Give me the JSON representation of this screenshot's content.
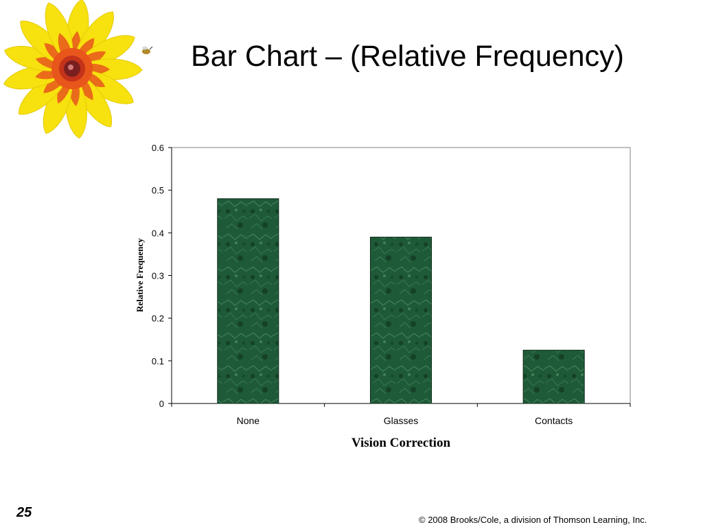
{
  "slide": {
    "title": "Bar Chart – (Relative Frequency)",
    "number": "25",
    "copyright": "© 2008 Brooks/Cole, a division of Thomson Learning, Inc."
  },
  "colors": {
    "bar_fill": "#1f5a38",
    "bar_dark": "#123d25",
    "bar_light": "#4f8f68",
    "petal_yellow": "#f7e10e",
    "petal_orange": "#e8561b",
    "flower_center": "#7a1f1f"
  },
  "decoration": {
    "flower_icon": "black-eyed-susan-flower"
  },
  "chart_data": {
    "type": "bar",
    "title": "",
    "categories": [
      "None",
      "Glasses",
      "Contacts"
    ],
    "values": [
      0.48,
      0.39,
      0.125
    ],
    "xlabel": "Vision Correction",
    "ylabel": "Relative Frequency",
    "ylim": [
      0,
      0.6
    ],
    "yticks": [
      "0",
      "0.1",
      "0.2",
      "0.3",
      "0.4",
      "0.5",
      "0.6"
    ],
    "grid": false,
    "legend": "none"
  }
}
